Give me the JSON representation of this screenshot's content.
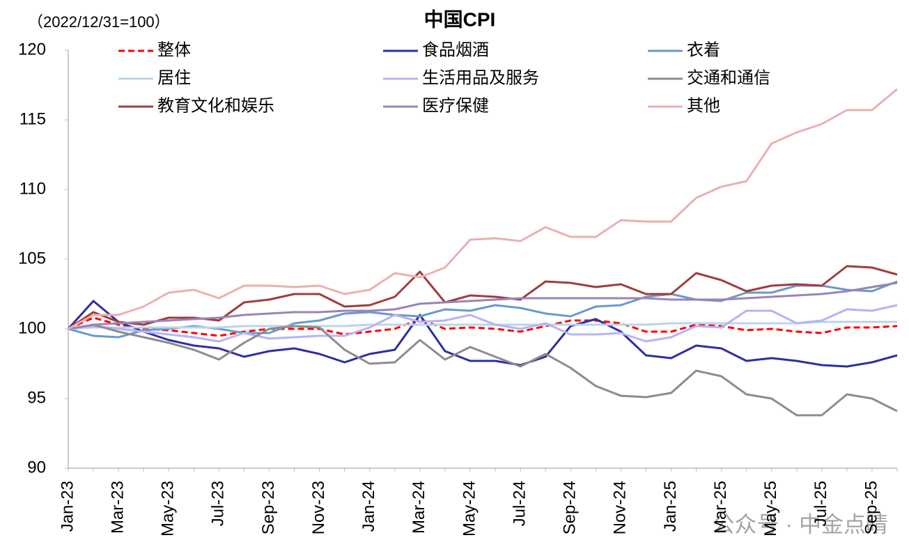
{
  "chart_data": {
    "type": "line",
    "title": "中国CPI",
    "subtitle": "（2022/12/31=100）",
    "watermark": "公众号 · 中金点睛",
    "categories": [
      "Jan-23",
      null,
      "Mar-23",
      null,
      "May-23",
      null,
      "Jul-23",
      null,
      "Sep-23",
      null,
      "Nov-23",
      null,
      "Jan-24",
      null,
      "Mar-24",
      null,
      "May-24",
      null,
      "Jul-24",
      null,
      "Sep-24",
      null,
      "Nov-24",
      null,
      "Jan-25",
      null,
      "Mar-25",
      null,
      "May-25",
      null,
      "Jul-25",
      null,
      "Sep-25",
      null
    ],
    "ylim": [
      90,
      120
    ],
    "yticks": [
      90,
      95,
      100,
      105,
      110,
      115,
      120
    ],
    "grid": false,
    "series": [
      {
        "name": "整体",
        "color": "#ff0000",
        "dash": "dashed",
        "values": [
          100,
          100.8,
          100.3,
          100.0,
          99.9,
          99.7,
          99.5,
          99.8,
          100.0,
          100.0,
          100.0,
          99.6,
          99.8,
          100.0,
          100.7,
          100.0,
          100.1,
          100.0,
          99.8,
          100.2,
          100.6,
          100.6,
          100.4,
          99.8,
          99.8,
          100.3,
          100.2,
          99.9,
          100.0,
          99.8,
          99.7,
          100.1,
          100.1,
          100.2
        ]
      },
      {
        "name": "食品烟酒",
        "color": "#2e2ea0",
        "values": [
          100,
          102.0,
          100.5,
          99.8,
          99.2,
          98.8,
          98.6,
          98.0,
          98.4,
          98.6,
          98.2,
          97.6,
          98.2,
          98.5,
          101.0,
          98.4,
          97.7,
          97.7,
          97.4,
          98.0,
          100.2,
          100.7,
          99.8,
          98.1,
          97.9,
          98.8,
          98.6,
          97.7,
          97.9,
          97.7,
          97.4,
          97.3,
          97.6,
          98.1
        ]
      },
      {
        "name": "衣着",
        "color": "#6a99cc",
        "values": [
          100,
          99.5,
          99.4,
          99.9,
          100.0,
          100.2,
          100.0,
          99.7,
          99.7,
          100.4,
          100.6,
          101.1,
          101.2,
          101.0,
          100.9,
          101.4,
          101.3,
          101.7,
          101.5,
          101.1,
          100.9,
          101.6,
          101.7,
          102.3,
          102.5,
          102.1,
          102.0,
          102.6,
          102.6,
          103.1,
          103.1,
          102.8,
          102.7,
          103.4
        ]
      },
      {
        "name": "居住",
        "color": "#bcd4e8",
        "values": [
          100,
          100.1,
          100.1,
          100.1,
          100.1,
          100.1,
          100.1,
          100.2,
          100.2,
          100.2,
          100.2,
          100.2,
          100.3,
          100.3,
          100.3,
          100.3,
          100.3,
          100.3,
          100.3,
          100.3,
          100.3,
          100.3,
          100.3,
          100.3,
          100.4,
          100.4,
          100.4,
          100.4,
          100.4,
          100.4,
          100.5,
          100.5,
          100.5,
          100.5
        ]
      },
      {
        "name": "生活用品及服务",
        "color": "#b4b4f4",
        "values": [
          100,
          100.2,
          100.0,
          99.8,
          99.6,
          99.4,
          99.1,
          99.7,
          99.3,
          99.4,
          99.5,
          99.5,
          100.1,
          101.0,
          100.5,
          100.6,
          101.0,
          100.3,
          100.0,
          100.4,
          99.6,
          99.6,
          99.7,
          99.1,
          99.4,
          100.2,
          100.1,
          101.3,
          101.3,
          100.4,
          100.6,
          101.4,
          101.3,
          101.7
        ]
      },
      {
        "name": "交通和通信",
        "color": "#8c8c8c",
        "values": [
          100,
          100.3,
          99.8,
          99.4,
          99.0,
          98.5,
          97.8,
          99.0,
          100.0,
          100.2,
          100.1,
          98.5,
          97.5,
          97.6,
          99.2,
          97.8,
          98.7,
          98.0,
          97.3,
          98.2,
          97.2,
          95.9,
          95.2,
          95.1,
          95.4,
          97.0,
          96.6,
          95.3,
          95.0,
          93.8,
          93.8,
          95.3,
          95.0,
          94.1
        ]
      },
      {
        "name": "教育文化和娱乐",
        "color": "#a03c3c",
        "values": [
          100,
          101.2,
          100.5,
          100.3,
          100.8,
          100.8,
          100.6,
          101.9,
          102.1,
          102.5,
          102.5,
          101.6,
          101.7,
          102.3,
          104.1,
          101.9,
          102.4,
          102.3,
          102.1,
          103.4,
          103.3,
          103.0,
          103.2,
          102.5,
          102.5,
          104.0,
          103.5,
          102.7,
          103.1,
          103.2,
          103.1,
          104.5,
          104.4,
          103.9
        ]
      },
      {
        "name": "医疗保健",
        "color": "#9a84b4",
        "values": [
          100,
          100.3,
          100.4,
          100.5,
          100.6,
          100.7,
          100.8,
          101.0,
          101.1,
          101.2,
          101.2,
          101.3,
          101.3,
          101.4,
          101.8,
          101.9,
          102.0,
          102.1,
          102.2,
          102.2,
          102.2,
          102.2,
          102.2,
          102.2,
          102.1,
          102.1,
          102.1,
          102.2,
          102.3,
          102.4,
          102.5,
          102.7,
          103.0,
          103.3
        ]
      },
      {
        "name": "其他",
        "color": "#eab0b0",
        "values": [
          100,
          101.0,
          101.0,
          101.6,
          102.6,
          102.8,
          102.2,
          103.1,
          103.1,
          103.0,
          103.1,
          102.5,
          102.8,
          104.0,
          103.7,
          104.4,
          106.4,
          106.5,
          106.3,
          107.3,
          106.6,
          106.6,
          107.8,
          107.7,
          107.7,
          109.4,
          110.2,
          110.6,
          113.3,
          114.1,
          114.7,
          115.7,
          115.7,
          117.2
        ]
      }
    ]
  }
}
